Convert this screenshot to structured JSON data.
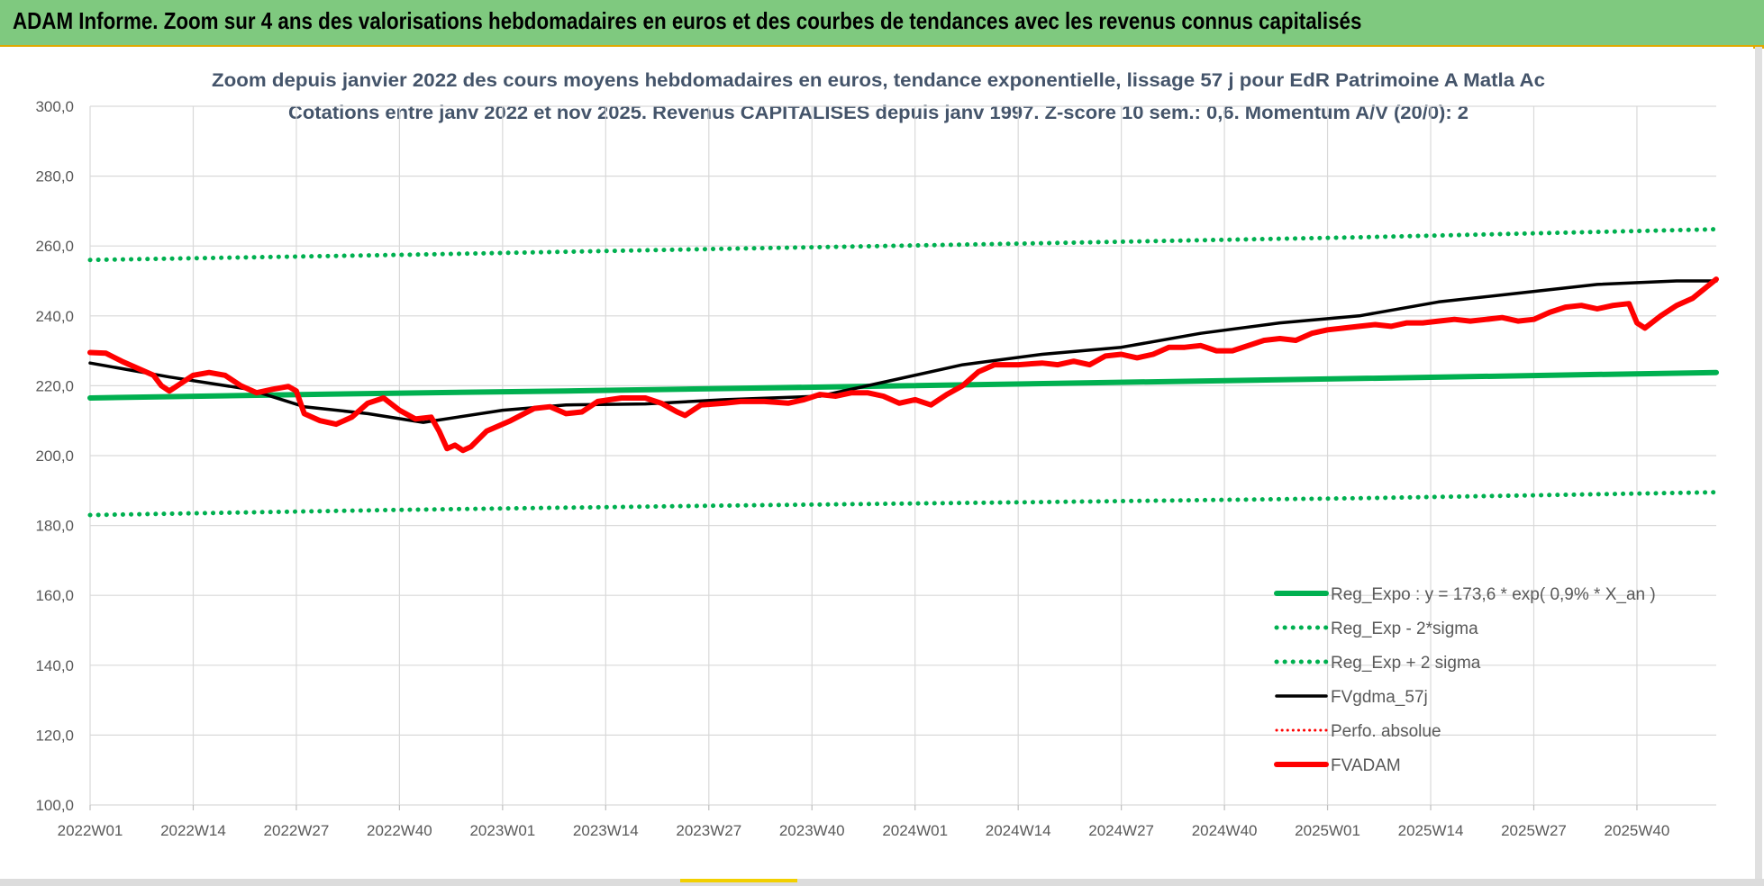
{
  "banner": {
    "title": "ADAM Informe. Zoom sur 4 ans des valorisations hebdomadaires en euros et des courbes de tendances avec les revenus connus capitalisés"
  },
  "colors": {
    "banner_bg": "#7fc97f",
    "reg_expo": "#00b050",
    "fvgdma": "#000000",
    "fvadam": "#ff0000",
    "grid": "#d9d9d9",
    "axis_text": "#595959",
    "title_text": "#44546a"
  },
  "chart_data": {
    "type": "line",
    "title_line1": "Zoom depuis janvier 2022 des cours moyens hebdomadaires en euros, tendance exponentielle, lissage 57 j pour EdR Patrimoine A Matla Ac",
    "title_line2": "Cotations entre janv 2022 et nov 2025. Revenus CAPITALISES depuis janv 1997. Z-score 10 sem.: 0,6. Momentum A/V (20/0): 2",
    "ylim": [
      100,
      300
    ],
    "y_ticks": [
      "100,0",
      "120,0",
      "140,0",
      "160,0",
      "180,0",
      "200,0",
      "220,0",
      "240,0",
      "260,0",
      "280,0",
      "300,0"
    ],
    "x_ticks": [
      "2022W01",
      "2022W14",
      "2022W27",
      "2022W40",
      "2023W01",
      "2023W14",
      "2023W27",
      "2023W40",
      "2024W01",
      "2024W14",
      "2024W27",
      "2024W40",
      "2025W01",
      "2025W14",
      "2025W27",
      "2025W40"
    ],
    "x_tick_weeks": [
      0,
      13,
      26,
      39,
      52,
      65,
      78,
      91,
      104,
      117,
      130,
      143,
      156,
      169,
      182,
      195
    ],
    "n_weeks": 206,
    "legend_position": "bottom-right",
    "series": [
      {
        "name": "Reg_Expo : y = 173,6 * exp( 0,9% *  X_an )",
        "style": "solid-green",
        "points": [
          [
            0,
            216.5
          ],
          [
            30,
            217.6
          ],
          [
            60,
            218.5
          ],
          [
            100,
            219.9
          ],
          [
            150,
            221.7
          ],
          [
            205,
            223.8
          ]
        ]
      },
      {
        "name": "Reg_Exp - 2*sigma",
        "style": "dotted-green",
        "points": [
          [
            0,
            183
          ],
          [
            40,
            184.5
          ],
          [
            80,
            185.7
          ],
          [
            120,
            186.7
          ],
          [
            160,
            187.8
          ],
          [
            205,
            189.5
          ]
        ]
      },
      {
        "name": "Reg_Exp + 2 sigma",
        "style": "dotted-green",
        "points": [
          [
            0,
            256
          ],
          [
            40,
            257.5
          ],
          [
            80,
            259.2
          ],
          [
            120,
            260.8
          ],
          [
            160,
            262.5
          ],
          [
            205,
            264.8
          ]
        ]
      },
      {
        "name": "FVgdma_57j",
        "style": "solid-black",
        "points": [
          [
            0,
            226.5
          ],
          [
            10,
            222.5
          ],
          [
            20,
            219
          ],
          [
            27,
            214
          ],
          [
            35,
            212
          ],
          [
            42,
            209.5
          ],
          [
            52,
            213
          ],
          [
            60,
            214.5
          ],
          [
            70,
            214.8
          ],
          [
            80,
            216
          ],
          [
            92,
            217
          ],
          [
            100,
            221
          ],
          [
            110,
            226
          ],
          [
            120,
            229
          ],
          [
            130,
            231
          ],
          [
            140,
            235
          ],
          [
            150,
            238
          ],
          [
            160,
            240
          ],
          [
            170,
            244
          ],
          [
            180,
            246.5
          ],
          [
            190,
            249
          ],
          [
            200,
            250
          ],
          [
            205,
            250
          ]
        ]
      },
      {
        "name": "Perfo. absolue",
        "style": "dotted-red",
        "points": []
      },
      {
        "name": "FVADAM",
        "style": "solid-red",
        "points": [
          [
            0,
            229.5
          ],
          [
            2,
            229.3
          ],
          [
            4,
            227
          ],
          [
            6,
            225
          ],
          [
            8,
            223
          ],
          [
            9,
            220
          ],
          [
            10,
            218.5
          ],
          [
            11,
            220
          ],
          [
            13,
            223
          ],
          [
            15,
            223.8
          ],
          [
            17,
            223
          ],
          [
            19,
            220
          ],
          [
            21,
            218
          ],
          [
            23,
            219
          ],
          [
            25,
            219.8
          ],
          [
            26,
            218.5
          ],
          [
            27,
            212
          ],
          [
            29,
            210
          ],
          [
            31,
            209
          ],
          [
            33,
            211
          ],
          [
            35,
            215
          ],
          [
            37,
            216.5
          ],
          [
            39,
            213
          ],
          [
            41,
            210.5
          ],
          [
            43,
            211
          ],
          [
            44,
            207
          ],
          [
            45,
            202
          ],
          [
            46,
            203
          ],
          [
            47,
            201.5
          ],
          [
            48,
            202.5
          ],
          [
            50,
            207
          ],
          [
            53,
            210
          ],
          [
            56,
            213.5
          ],
          [
            58,
            214
          ],
          [
            60,
            212
          ],
          [
            62,
            212.5
          ],
          [
            64,
            215.5
          ],
          [
            67,
            216.5
          ],
          [
            70,
            216.5
          ],
          [
            72,
            215
          ],
          [
            74,
            212.5
          ],
          [
            75,
            211.5
          ],
          [
            77,
            214.5
          ],
          [
            80,
            215
          ],
          [
            82,
            215.5
          ],
          [
            85,
            215.5
          ],
          [
            88,
            215
          ],
          [
            90,
            216
          ],
          [
            92,
            217.5
          ],
          [
            94,
            217
          ],
          [
            96,
            218
          ],
          [
            98,
            218
          ],
          [
            100,
            217
          ],
          [
            102,
            215
          ],
          [
            104,
            216
          ],
          [
            106,
            214.5
          ],
          [
            108,
            217.5
          ],
          [
            110,
            220
          ],
          [
            112,
            224
          ],
          [
            114,
            226
          ],
          [
            117,
            226
          ],
          [
            120,
            226.5
          ],
          [
            122,
            226
          ],
          [
            124,
            227
          ],
          [
            126,
            226
          ],
          [
            128,
            228.5
          ],
          [
            130,
            229
          ],
          [
            132,
            228
          ],
          [
            134,
            229
          ],
          [
            136,
            231
          ],
          [
            138,
            231
          ],
          [
            140,
            231.5
          ],
          [
            142,
            230
          ],
          [
            144,
            230
          ],
          [
            146,
            231.5
          ],
          [
            148,
            233
          ],
          [
            150,
            233.5
          ],
          [
            152,
            233
          ],
          [
            154,
            235
          ],
          [
            156,
            236
          ],
          [
            158,
            236.5
          ],
          [
            160,
            237
          ],
          [
            162,
            237.5
          ],
          [
            164,
            237
          ],
          [
            166,
            238
          ],
          [
            168,
            238
          ],
          [
            170,
            238.5
          ],
          [
            172,
            239
          ],
          [
            174,
            238.5
          ],
          [
            176,
            239
          ],
          [
            178,
            239.5
          ],
          [
            180,
            238.5
          ],
          [
            182,
            239
          ],
          [
            184,
            241
          ],
          [
            186,
            242.5
          ],
          [
            188,
            243
          ],
          [
            190,
            242
          ],
          [
            192,
            243
          ],
          [
            194,
            243.5
          ],
          [
            195,
            238
          ],
          [
            196,
            236.5
          ],
          [
            198,
            240
          ],
          [
            200,
            243
          ],
          [
            202,
            245
          ],
          [
            205,
            250.5
          ]
        ]
      }
    ]
  }
}
